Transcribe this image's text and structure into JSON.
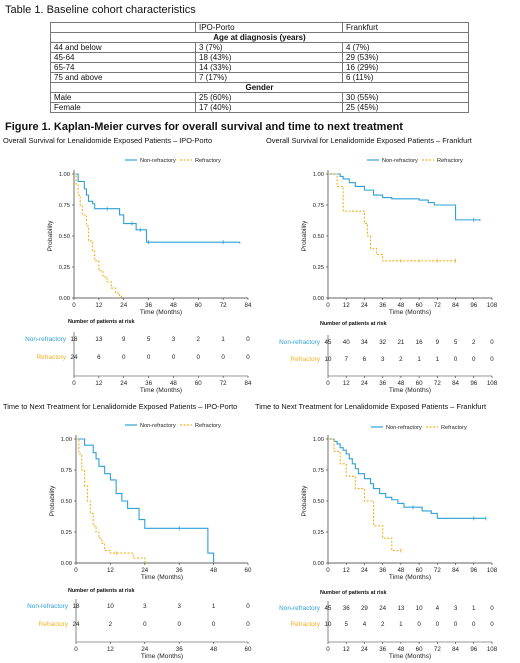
{
  "table": {
    "title": "Table 1. Baseline cohort characteristics",
    "columns": [
      "",
      "IPO-Porto",
      "Frankfurt"
    ],
    "sections": [
      {
        "heading": "Age at diagnosis (years)",
        "rows": [
          [
            "44 and below",
            "3 (7%)",
            "4 (7%)"
          ],
          [
            "45-64",
            "18 (43%)",
            "29 (53%)"
          ],
          [
            "65-74",
            "14 (33%)",
            "16 (29%)"
          ],
          [
            "75 and above",
            "7 (17%)",
            "6 (11%)"
          ]
        ]
      },
      {
        "heading": "Gender",
        "rows": [
          [
            "Male",
            "25 (60%)",
            "30 (55%)"
          ],
          [
            "Female",
            "17 (40%)",
            "25 (45%)"
          ]
        ]
      }
    ]
  },
  "figure_title": "Figure 1. Kaplan-Meier curves for overall survival and time to next treatment",
  "colors": {
    "non_refractory": "#2ea1d6",
    "refractory": "#f4b023"
  },
  "chart_data": [
    {
      "type": "line",
      "title": "Overall Survival for Lenalidomide Exposed Patients – IPO-Porto",
      "xlabel": "Time (Months)",
      "ylabel": "Probability",
      "xticks": [
        0,
        12,
        24,
        36,
        48,
        60,
        72,
        84
      ],
      "xlim": [
        0,
        84
      ],
      "yticks": [
        "0.00",
        "0.25",
        "0.50",
        "0.75",
        "1.00"
      ],
      "ylim": [
        0,
        1
      ],
      "legend": [
        "Non-refractory",
        "Refractory"
      ],
      "series": [
        {
          "name": "Non-refractory",
          "x": [
            0,
            2,
            5,
            6,
            7,
            9,
            10,
            16,
            22,
            24,
            28,
            30,
            32,
            35,
            36,
            72,
            80
          ],
          "y": [
            1,
            0.94,
            0.88,
            0.83,
            0.78,
            0.76,
            0.72,
            0.72,
            0.67,
            0.6,
            0.6,
            0.55,
            0.55,
            0.45,
            0.45,
            0.45,
            0.44
          ]
        },
        {
          "name": "Refractory",
          "x": [
            0,
            1,
            2,
            3,
            4,
            6,
            7,
            9,
            10,
            12,
            14,
            16,
            18,
            20,
            22,
            23
          ],
          "y": [
            1,
            0.92,
            0.83,
            0.75,
            0.67,
            0.58,
            0.46,
            0.38,
            0.3,
            0.22,
            0.17,
            0.13,
            0.08,
            0.04,
            0.02,
            0
          ]
        }
      ],
      "risk_table": {
        "title": "Number of patients at risk",
        "rows": [
          {
            "name": "Non-refractory",
            "values": [
              "18",
              "13",
              "9",
              "5",
              "3",
              "2",
              "1",
              "0"
            ]
          },
          {
            "name": "Refractory",
            "values": [
              "24",
              "6",
              "0",
              "0",
              "0",
              "0",
              "0",
              "0"
            ]
          }
        ]
      }
    },
    {
      "type": "line",
      "title": "Overall Survival for Lenalidomide Exposed Patients – Frankfurt",
      "xlabel": "Time (Months)",
      "ylabel": "Probability",
      "xticks": [
        0,
        12,
        24,
        36,
        48,
        60,
        72,
        84,
        96,
        108
      ],
      "xlim": [
        0,
        108
      ],
      "yticks": [
        "0.00",
        "0.25",
        "0.50",
        "0.75",
        "1.00"
      ],
      "ylim": [
        0,
        1
      ],
      "legend": [
        "Non-refractory",
        "Refractory"
      ],
      "series": [
        {
          "name": "Non-refractory",
          "x": [
            0,
            8,
            10,
            14,
            18,
            24,
            30,
            36,
            42,
            60,
            66,
            70,
            84,
            96,
            100
          ],
          "y": [
            1,
            0.98,
            0.96,
            0.93,
            0.9,
            0.87,
            0.83,
            0.81,
            0.8,
            0.79,
            0.77,
            0.75,
            0.63,
            0.63,
            0.62
          ]
        },
        {
          "name": "Refractory",
          "x": [
            0,
            6,
            10,
            24,
            26,
            28,
            32,
            36,
            48,
            60,
            72,
            84
          ],
          "y": [
            1,
            0.9,
            0.7,
            0.6,
            0.5,
            0.4,
            0.35,
            0.3,
            0.3,
            0.3,
            0.3,
            0.3
          ]
        }
      ],
      "risk_table": {
        "title": "Number of patients at risk",
        "rows": [
          {
            "name": "Non-refractory",
            "values": [
              "45",
              "40",
              "34",
              "32",
              "21",
              "16",
              "9",
              "5",
              "2",
              "0"
            ]
          },
          {
            "name": "Refractory",
            "values": [
              "10",
              "7",
              "6",
              "3",
              "2",
              "1",
              "1",
              "0",
              "0",
              "0"
            ]
          }
        ]
      }
    },
    {
      "type": "line",
      "title": "Time to Next Treatment for Lenalidomide Exposed Patients – IPO-Porto",
      "xlabel": "Time (Months)",
      "ylabel": "Probability",
      "xticks": [
        0,
        12,
        24,
        36,
        48,
        60
      ],
      "xlim": [
        0,
        60
      ],
      "yticks": [
        "0.00",
        "0.25",
        "0.50",
        "0.75",
        "1.00"
      ],
      "ylim": [
        0,
        1
      ],
      "legend": [
        "Non-refractory",
        "Refractory"
      ],
      "series": [
        {
          "name": "Non-refractory",
          "x": [
            0,
            3,
            6,
            7,
            8,
            10,
            12,
            14,
            16,
            18,
            22,
            24,
            36,
            46,
            48
          ],
          "y": [
            1,
            0.95,
            0.89,
            0.84,
            0.78,
            0.72,
            0.67,
            0.56,
            0.5,
            0.44,
            0.35,
            0.28,
            0.28,
            0.08,
            0
          ]
        },
        {
          "name": "Refractory",
          "x": [
            0,
            1,
            2,
            3,
            4,
            5,
            6,
            7,
            8,
            9,
            10,
            12,
            14,
            20,
            24
          ],
          "y": [
            1,
            0.88,
            0.75,
            0.62,
            0.5,
            0.4,
            0.3,
            0.25,
            0.2,
            0.16,
            0.1,
            0.08,
            0.08,
            0.04,
            0
          ]
        }
      ],
      "risk_table": {
        "title": "Number of patients at risk",
        "rows": [
          {
            "name": "Non-refractory",
            "values": [
              "18",
              "10",
              "3",
              "3",
              "1",
              "0"
            ]
          },
          {
            "name": "Refractory",
            "values": [
              "24",
              "2",
              "0",
              "0",
              "0",
              "0"
            ]
          }
        ]
      }
    },
    {
      "type": "line",
      "title": "Time to Next Treatment for Lenalidomide Exposed Patients – Frankfurt",
      "xlabel": "Time (Months)",
      "ylabel": "Probability",
      "xticks": [
        0,
        12,
        24,
        36,
        48,
        60,
        72,
        84,
        96,
        108
      ],
      "xlim": [
        0,
        108
      ],
      "yticks": [
        "0.00",
        "0.25",
        "0.50",
        "0.75",
        "1.00"
      ],
      "ylim": [
        0,
        1
      ],
      "legend": [
        "Non-refractory",
        "Refractory"
      ],
      "series": [
        {
          "name": "Non-refractory",
          "x": [
            0,
            4,
            6,
            8,
            10,
            12,
            14,
            16,
            18,
            20,
            24,
            28,
            30,
            34,
            38,
            42,
            46,
            50,
            56,
            62,
            68,
            72,
            96,
            104
          ],
          "y": [
            1,
            0.98,
            0.96,
            0.93,
            0.91,
            0.88,
            0.84,
            0.8,
            0.76,
            0.72,
            0.68,
            0.64,
            0.6,
            0.56,
            0.53,
            0.51,
            0.48,
            0.45,
            0.45,
            0.42,
            0.4,
            0.36,
            0.36,
            0.36
          ]
        },
        {
          "name": "Refractory",
          "x": [
            0,
            4,
            8,
            12,
            18,
            24,
            30,
            36,
            42,
            48
          ],
          "y": [
            1,
            0.9,
            0.8,
            0.7,
            0.6,
            0.5,
            0.3,
            0.2,
            0.1,
            0.1
          ]
        }
      ],
      "risk_table": {
        "title": "Number of patients at risk",
        "rows": [
          {
            "name": "Non-refractory",
            "values": [
              "45",
              "36",
              "29",
              "24",
              "13",
              "10",
              "4",
              "3",
              "1",
              "0"
            ]
          },
          {
            "name": "Refractory",
            "values": [
              "10",
              "5",
              "4",
              "2",
              "1",
              "0",
              "0",
              "0",
              "0",
              "0"
            ]
          }
        ]
      }
    }
  ]
}
